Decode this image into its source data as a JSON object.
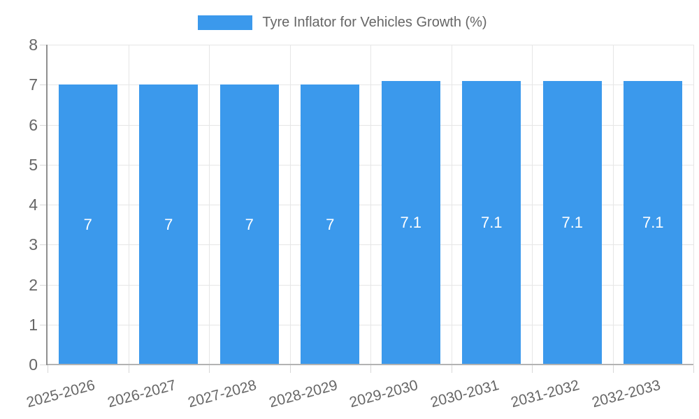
{
  "legend": {
    "label": "Tyre Inflator for Vehicles Growth (%)"
  },
  "colors": {
    "bar": "#3B99EC",
    "text": "#666666",
    "value_text": "#FFFFFF",
    "grid": "#E6E6E6",
    "tick": "#D8D8D8",
    "axis_y": "#8F8F8F",
    "axis_x": "#B3B3B3",
    "background": "#FFFFFF"
  },
  "chart_data": {
    "type": "bar",
    "title": "Tyre Inflator for Vehicles Growth (%)",
    "categories": [
      "2025-2026",
      "2026-2027",
      "2027-2028",
      "2028-2029",
      "2029-2030",
      "2030-2031",
      "2031-2032",
      "2032-2033"
    ],
    "values": [
      7,
      7,
      7,
      7,
      7.1,
      7.1,
      7.1,
      7.1
    ],
    "value_labels": [
      "7",
      "7",
      "7",
      "7",
      "7.1",
      "7.1",
      "7.1",
      "7.1"
    ],
    "xlabel": "",
    "ylabel": "",
    "ylim": [
      0,
      8
    ],
    "ytick_step": 1,
    "yticks": [
      "0",
      "1",
      "2",
      "3",
      "4",
      "5",
      "6",
      "7",
      "8"
    ],
    "grid": true,
    "legend_position": "top",
    "x_label_rotation_deg": -15,
    "bar_color": "#3B99EC"
  }
}
